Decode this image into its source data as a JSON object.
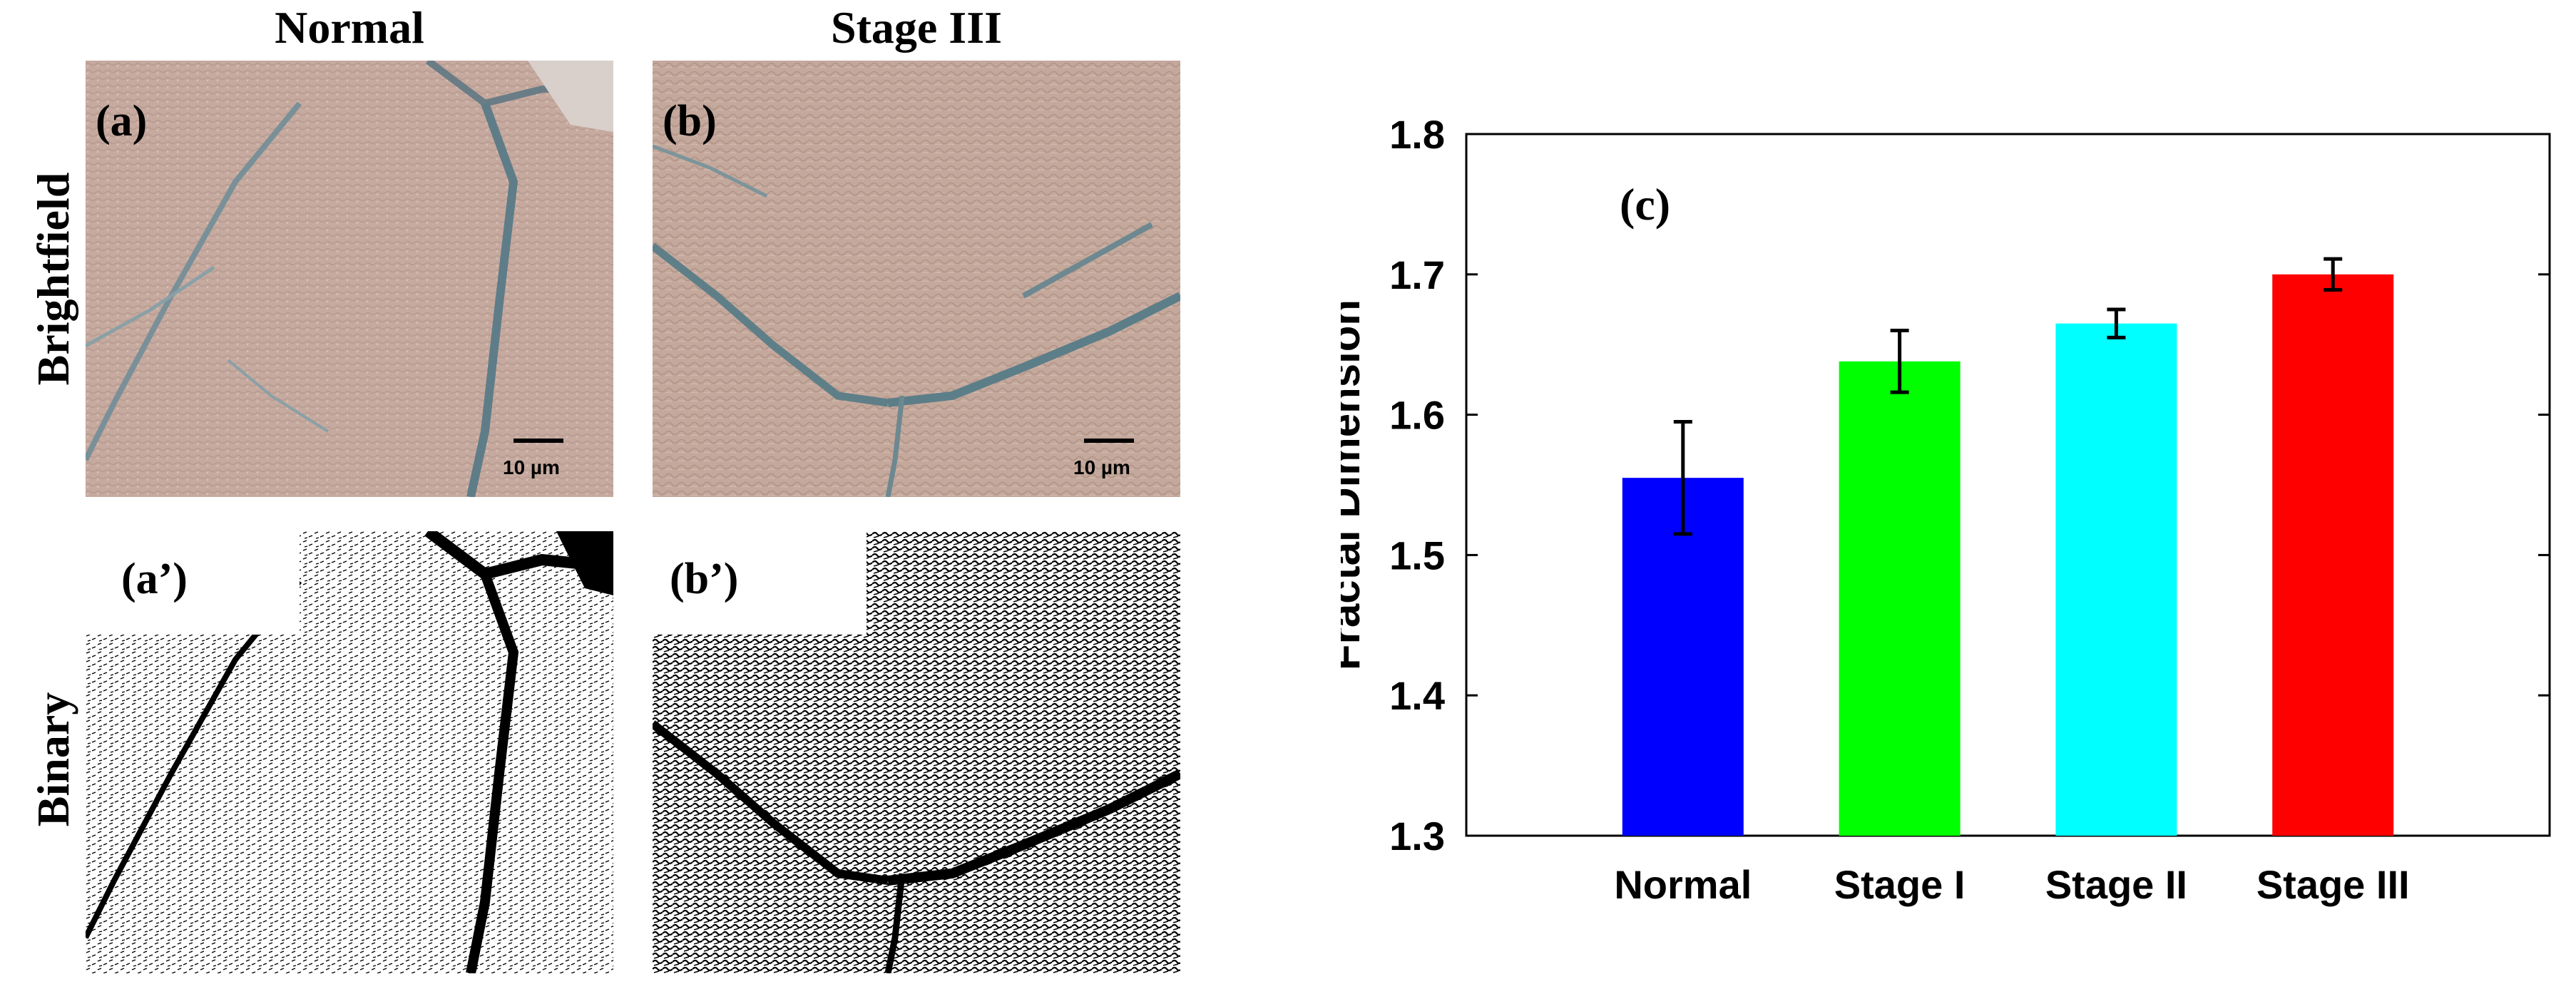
{
  "figure": {
    "columns": [
      "Normal",
      "Stage III"
    ],
    "rows": [
      "Brightfield",
      "Binary"
    ],
    "panels": {
      "a": "(a)",
      "b": "(b)",
      "a_prime": "(a’)",
      "b_prime": "(b’)"
    },
    "scale_bar_text": "10 µm"
  },
  "chart_data": {
    "type": "bar",
    "panel_label": "(c)",
    "categories": [
      "Normal",
      "Stage I",
      "Stage II",
      "Stage III"
    ],
    "values": [
      1.555,
      1.638,
      1.665,
      1.7
    ],
    "errors": [
      0.04,
      0.022,
      0.01,
      0.011
    ],
    "colors": [
      "#0000ff",
      "#00ff00",
      "#00ffff",
      "#ff0000"
    ],
    "ylabel": "Fractal Dimension",
    "xlabel": "",
    "ylim": [
      1.3,
      1.8
    ],
    "yticks": [
      1.3,
      1.4,
      1.5,
      1.6,
      1.7,
      1.8
    ],
    "grid": false
  }
}
